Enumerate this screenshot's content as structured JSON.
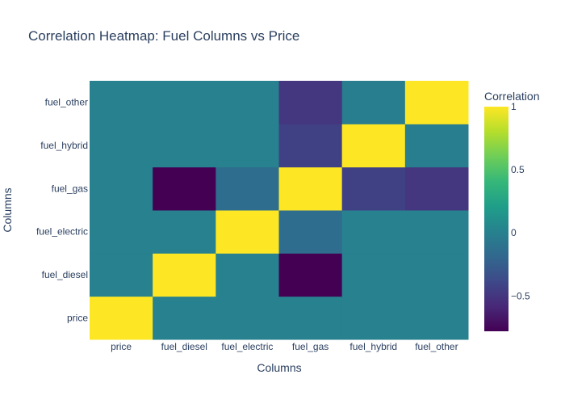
{
  "chart_data": {
    "type": "heatmap",
    "title": "Correlation Heatmap: Fuel Columns vs Price",
    "xlabel": "Columns",
    "ylabel": "Columns",
    "x": [
      "price",
      "fuel_diesel",
      "fuel_electric",
      "fuel_gas",
      "fuel_hybrid",
      "fuel_other"
    ],
    "y": [
      "price",
      "fuel_diesel",
      "fuel_electric",
      "fuel_gas",
      "fuel_hybrid",
      "fuel_other"
    ],
    "z": [
      [
        1.0,
        0.0,
        0.0,
        0.0,
        0.0,
        0.0
      ],
      [
        0.0,
        1.0,
        0.0,
        -0.78,
        0.0,
        0.0
      ],
      [
        0.0,
        0.0,
        1.0,
        -0.15,
        0.0,
        0.0
      ],
      [
        0.0,
        -0.78,
        -0.15,
        1.0,
        -0.43,
        -0.5
      ],
      [
        0.0,
        0.0,
        0.0,
        -0.43,
        1.0,
        -0.03
      ],
      [
        0.0,
        0.0,
        0.0,
        -0.5,
        -0.03,
        1.0
      ]
    ],
    "colorscale": "Viridis",
    "zmin": -0.78,
    "zmax": 1.0,
    "colorbar": {
      "title": "Correlation",
      "tickvals": [
        1,
        0.5,
        0,
        -0.5
      ],
      "ticktext": [
        "1",
        "0.5",
        "0",
        "−0.5"
      ]
    }
  }
}
